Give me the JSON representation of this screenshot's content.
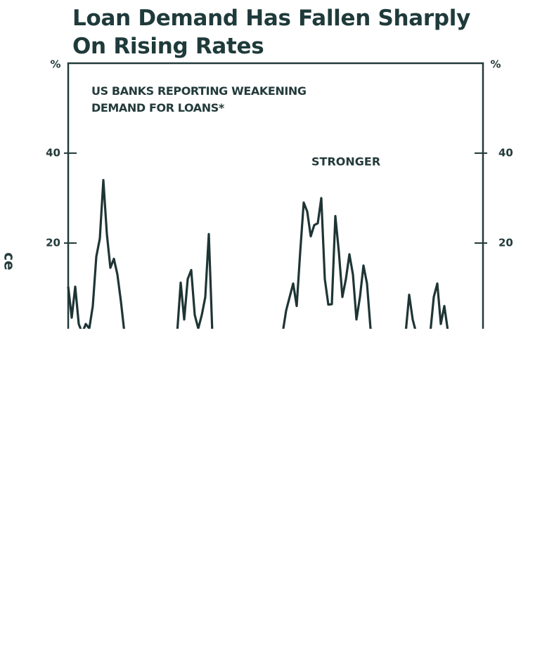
{
  "chart_data": {
    "type": "line",
    "title": "Loan Demand Has Fallen Sharply On Rising Rates",
    "annotation": "US BANKS REPORTING WEAKENING DEMAND FOR LOANS*",
    "label_stronger": "STRONGER",
    "side_text": "ce",
    "y_label": "%",
    "y2_label": "%",
    "ylim": [
      0,
      60
    ],
    "yticks": [
      20,
      40
    ],
    "y2lim": [
      0,
      60
    ],
    "y2ticks": [
      20,
      40
    ],
    "color": "#1f3535",
    "categories": [
      null,
      null,
      null,
      null,
      null,
      null,
      null,
      null,
      null,
      null,
      null,
      null,
      null,
      null,
      null,
      null,
      null,
      null,
      null,
      null,
      null,
      null,
      null,
      null,
      null,
      null,
      null,
      null,
      null,
      null,
      null,
      null,
      null,
      null,
      null,
      null,
      null,
      null,
      null,
      null,
      null,
      null,
      null,
      null,
      null,
      null,
      null,
      null,
      null,
      null,
      null,
      null,
      null,
      null,
      null,
      null,
      null,
      null,
      null,
      null,
      null,
      null,
      null,
      null,
      null,
      null,
      null,
      null,
      null,
      null,
      null,
      null,
      null,
      null,
      null,
      null,
      null,
      null,
      null,
      null,
      null,
      null,
      null,
      null,
      null,
      null,
      null,
      null,
      null,
      null,
      null,
      null,
      null,
      null,
      null,
      null,
      null,
      null,
      null,
      null,
      null,
      null,
      null,
      null,
      null,
      null,
      null,
      null,
      null,
      null,
      null,
      null,
      null,
      null,
      null,
      null,
      null,
      null,
      null
    ],
    "values": [
      10.3,
      3.4,
      10.3,
      2,
      0,
      2,
      1,
      6,
      17,
      21,
      34,
      22,
      14.5,
      16.5,
      13,
      7,
      0,
      0,
      0,
      0,
      0,
      0,
      0,
      0,
      0,
      0,
      0,
      0,
      0,
      0,
      0,
      0,
      11.2,
      3,
      12,
      14,
      4,
      1,
      4,
      8,
      22,
      0,
      0,
      0,
      0,
      0,
      0,
      0,
      0,
      0,
      0,
      0,
      0,
      0,
      0,
      0,
      0,
      0,
      0,
      0,
      0,
      0,
      5,
      8,
      11,
      6,
      18,
      29,
      27,
      21.5,
      24,
      24.4,
      30,
      12,
      6.3,
      6.4,
      26,
      18,
      8,
      12,
      17.5,
      13,
      3,
      8,
      15,
      11,
      1,
      0,
      0,
      0,
      0,
      0,
      0,
      0,
      0,
      0,
      0,
      8.5,
      3,
      0,
      0,
      0,
      0,
      0,
      8,
      11,
      2,
      6,
      0.5,
      0,
      0,
      0,
      0,
      0,
      0,
      0,
      0,
      0,
      0
    ]
  }
}
